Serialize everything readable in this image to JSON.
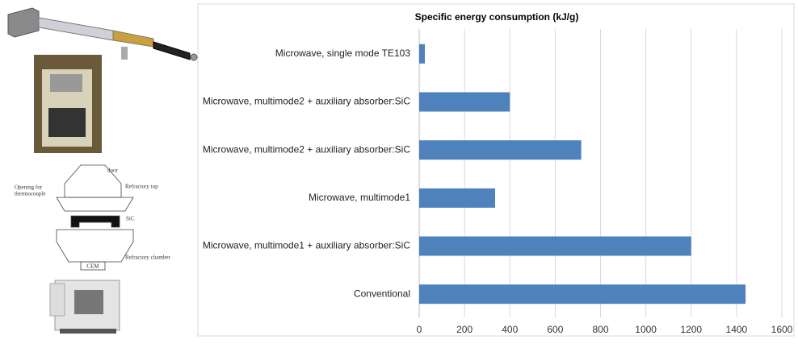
{
  "chart_data": {
    "type": "barh",
    "title": "Specific energy consumption (kJ/g)",
    "categories": [
      "Microwave, single mode TE103",
      "Microwave, multimode2 + auxiliary absorber:SiC",
      "Microwave, multimode2 + auxiliary absorber:SiC",
      "Microwave, multimode1",
      "Microwave, multimode1 + auxiliary absorber:SiC",
      "Conventional"
    ],
    "values": [
      25,
      400,
      715,
      335,
      1200,
      1440
    ],
    "color": "#4f81bd",
    "xlim": [
      0,
      1600
    ],
    "xticks": [
      0,
      200,
      400,
      600,
      800,
      1000,
      1200,
      1400,
      1600
    ],
    "grid": true
  },
  "diagram": {
    "labels": [
      "door",
      "Opening for",
      "thermocouple",
      "Refractory top",
      "SiC",
      "Refractory chamber",
      "CEM"
    ]
  }
}
